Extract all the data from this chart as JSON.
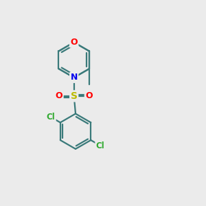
{
  "bg_color": "#ebebeb",
  "bond_color": "#3a7a7a",
  "bond_lw": 1.6,
  "atom_colors": {
    "O": "#ff0000",
    "N": "#0000ee",
    "S": "#bbbb00",
    "Cl": "#33aa33"
  },
  "figsize": [
    3.0,
    3.0
  ],
  "dpi": 100,
  "xlim": [
    0,
    10
  ],
  "ylim": [
    0,
    10
  ]
}
